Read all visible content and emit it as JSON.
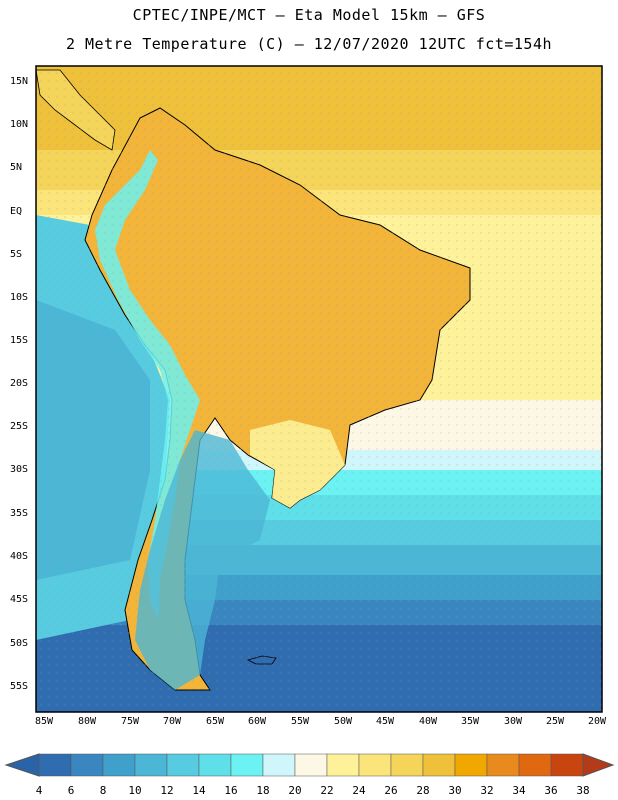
{
  "header": {
    "line1": "CPTEC/INPE/MCT –  Eta Model 15km – GFS",
    "line2": "2 Metre Temperature (C) – 12/07/2020 12UTC fct=154h"
  },
  "axes": {
    "lat_labels": [
      "15N",
      "10N",
      "5N",
      "EQ",
      "5S",
      "10S",
      "15S",
      "20S",
      "25S",
      "30S",
      "35S",
      "40S",
      "45S",
      "50S",
      "55S"
    ],
    "lon_labels": [
      "85W",
      "80W",
      "75W",
      "70W",
      "65W",
      "60W",
      "55W",
      "50W",
      "45W",
      "40W",
      "35W",
      "30W",
      "25W",
      "20W"
    ]
  },
  "colorbar": {
    "labels": [
      "4",
      "6",
      "8",
      "10",
      "12",
      "14",
      "16",
      "18",
      "20",
      "22",
      "24",
      "26",
      "28",
      "30",
      "32",
      "34",
      "36",
      "38"
    ],
    "colors": {
      "lt4": "#2a63a8",
      "c4_6": "#2f6cb0",
      "c6_8": "#3a86c0",
      "c8_10": "#3fa0cc",
      "c10_12": "#4bb6d6",
      "c12_14": "#57cbe0",
      "c14_16": "#5fdfe8",
      "c16_18": "#6cf2f2",
      "c18_20": "#cff7fb",
      "c20_22": "#fdf8e6",
      "c22_24": "#fdf29a",
      "c24_26": "#fbe57a",
      "c26_28": "#f5d45a",
      "c28_30": "#efc13a",
      "c30_32": "#f0a800",
      "c32_34": "#e98a1f",
      "c34_36": "#e06810",
      "c36_38": "#c94510",
      "gt38": "#b43a18"
    }
  }
}
